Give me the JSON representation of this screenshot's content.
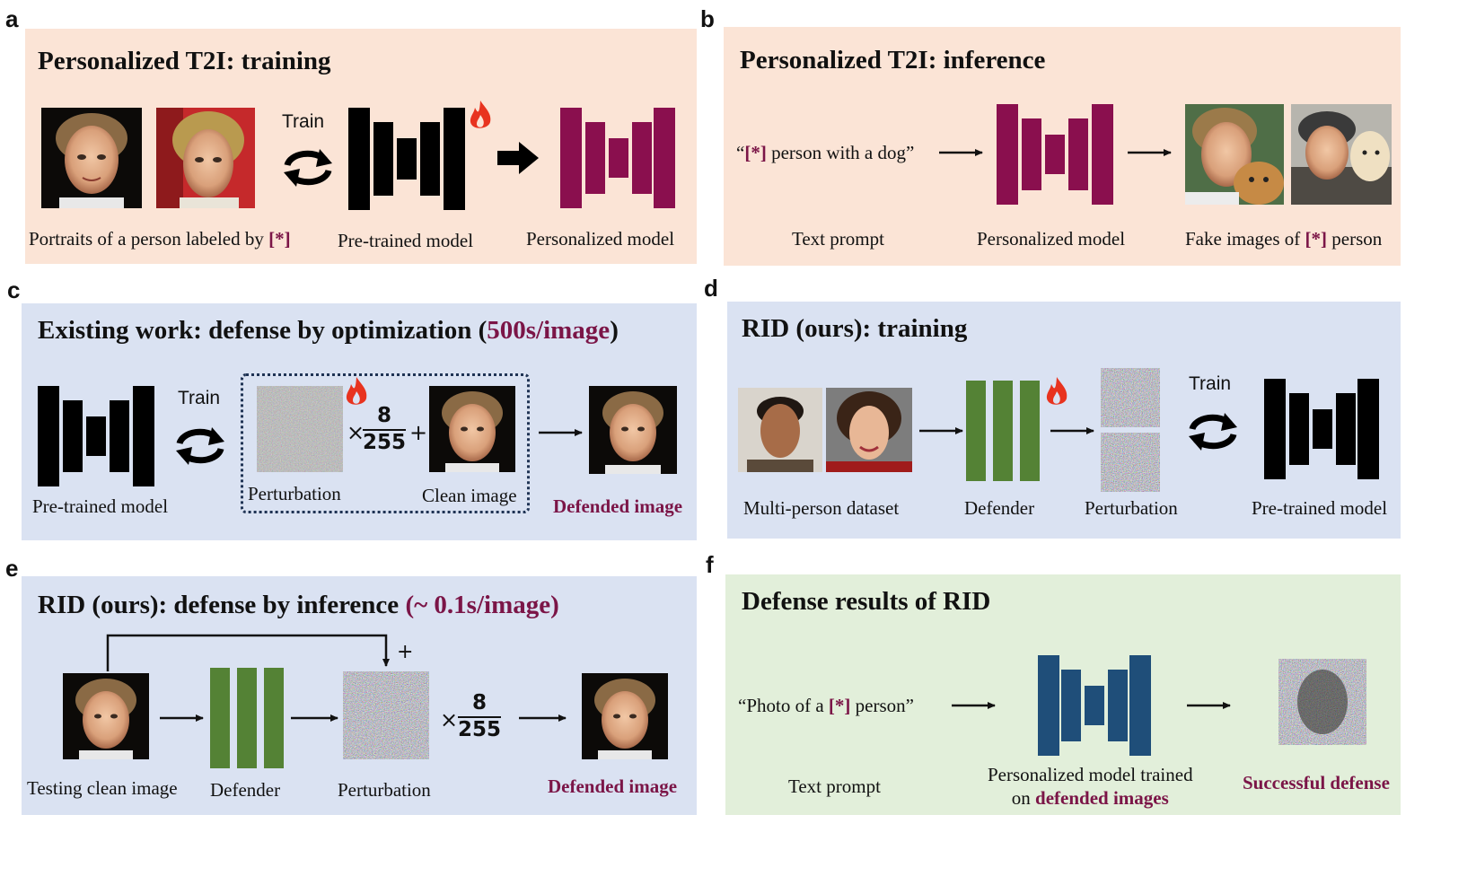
{
  "colors": {
    "peach": "#fbe4d6",
    "blue": "#dae2f2",
    "green": "#e2efda",
    "magenta": "#7b1547",
    "model_black": "#000000",
    "defender_green": "#548235",
    "personalized_blue": "#1f4e79",
    "fire": "#e8331f"
  },
  "panels": {
    "a": {
      "letter": "a",
      "title": "Personalized T2I: training",
      "train_label": "Train",
      "caption_portraits_prefix": "Portraits of a person labeled by ",
      "caption_portraits_token": "[*]",
      "caption_pretrained": "Pre-trained model",
      "caption_personalized": "Personalized model"
    },
    "b": {
      "letter": "b",
      "title": "Personalized T2I: inference",
      "prompt_open": "“",
      "prompt_token": "[*]",
      "prompt_rest": " person with a dog”",
      "caption_text_prompt": "Text prompt",
      "caption_personalized": "Personalized model",
      "caption_fake_prefix": "Fake images of ",
      "caption_fake_token": "[*]",
      "caption_fake_suffix": " person"
    },
    "c": {
      "letter": "c",
      "title_prefix": "Existing work: defense by optimization (",
      "title_time": "500s/image",
      "title_suffix": ")",
      "train_label": "Train",
      "times": "×",
      "frac_num": "8",
      "frac_den": "255",
      "plus": "+",
      "caption_pretrained": "Pre-trained model",
      "caption_perturbation": "Perturbation",
      "caption_clean": "Clean image",
      "caption_defended": "Defended image"
    },
    "d": {
      "letter": "d",
      "title": "RID (ours): training",
      "train_label": "Train",
      "caption_dataset": "Multi-person dataset",
      "caption_defender": "Defender",
      "caption_perturbation": "Perturbation",
      "caption_pretrained": "Pre-trained model"
    },
    "e": {
      "letter": "e",
      "title_prefix": "RID (ours): defense by inference ",
      "title_time": "(~ 0.1s/image)",
      "plus": "+",
      "times": "×",
      "frac_num": "8",
      "frac_den": "255",
      "caption_testing": "Testing clean image",
      "caption_defender": "Defender",
      "caption_perturbation": "Perturbation",
      "caption_defended": "Defended image"
    },
    "f": {
      "letter": "f",
      "title": "Defense results of RID",
      "prompt_prefix": "“Photo of a ",
      "prompt_token": "[*]",
      "prompt_suffix": " person”",
      "caption_text_prompt": "Text prompt",
      "caption_model_line1": "Personalized model trained",
      "caption_model_line2_prefix": "on ",
      "caption_model_line2_bold": "defended images",
      "caption_success": "Successful defense"
    }
  }
}
